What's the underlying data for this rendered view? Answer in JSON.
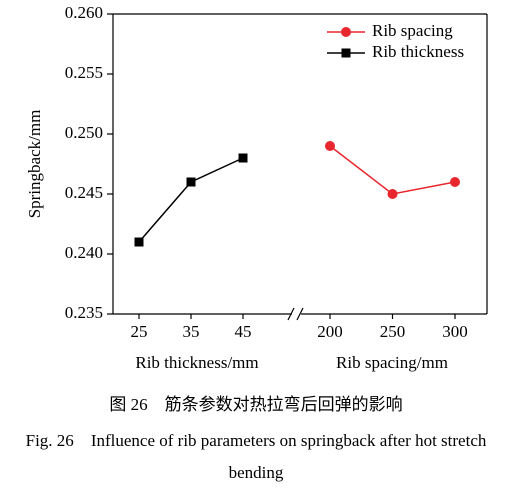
{
  "chart_data": [
    {
      "type": "line",
      "ylabel": "Springback/mm",
      "xlabel": "Rib thickness/mm",
      "categories": [
        "25",
        "35",
        "45"
      ],
      "series": [
        {
          "name": "Rib thickness",
          "color": "#000000",
          "marker": "square",
          "values": [
            0.241,
            0.246,
            0.248
          ]
        }
      ],
      "ylim": [
        0.235,
        0.26
      ],
      "yticks": [
        0.235,
        {
          "value": 0.24,
          "label": "0.240"
        },
        0.245,
        {
          "value": 0.25,
          "label": "0.250"
        },
        0.255,
        {
          "value": 0.26,
          "label": "0.260"
        }
      ]
    },
    {
      "type": "line",
      "xlabel": "Rib spacing/mm",
      "categories": [
        "200",
        "250",
        "300"
      ],
      "series": [
        {
          "name": "Rib spacing",
          "color": "#e8262d",
          "marker": "circle",
          "values": [
            0.249,
            0.245,
            0.246
          ]
        }
      ],
      "ylim": [
        0.235,
        0.26
      ],
      "legend": "upper right"
    }
  ],
  "caption": {
    "cn_label": "图 26",
    "cn_text": "筋条参数对热拉弯后回弹的影响",
    "en_label": "Fig. 26",
    "en_text": "Influence of rib parameters on springback after hot stretch bending"
  }
}
